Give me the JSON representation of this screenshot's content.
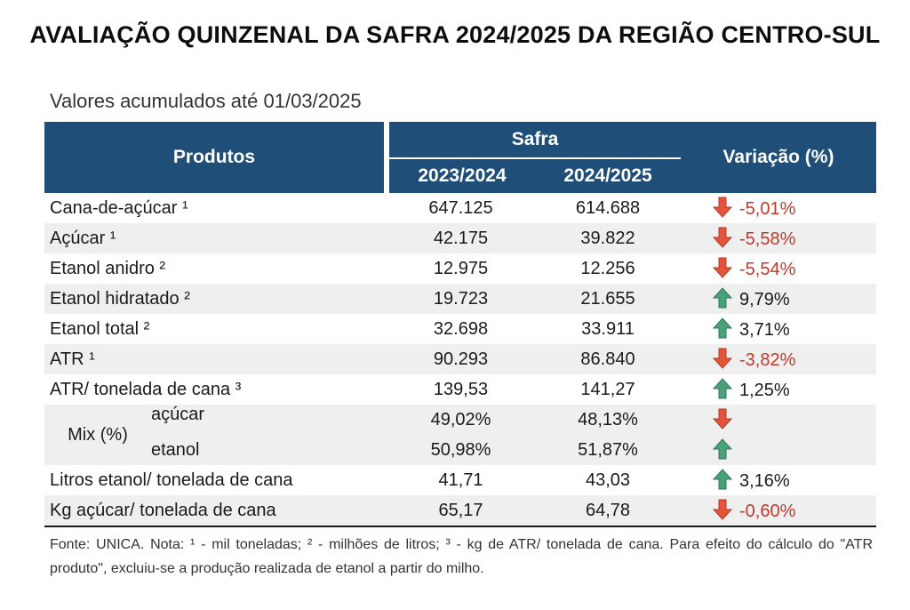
{
  "title": "AVALIAÇÃO QUINZENAL DA SAFRA 2024/2025 DA REGIÃO CENTRO-SUL",
  "subtitle": "Valores acumulados até 01/03/2025",
  "header": {
    "produtos": "Produtos",
    "safra": "Safra",
    "year1": "2023/2024",
    "year2": "2024/2025",
    "variacao": "Variação (%)"
  },
  "colors": {
    "header_bg": "#1f4e79",
    "arrow_down": "#e2553a",
    "arrow_up": "#4aa07a",
    "neg_text": "#c0392b"
  },
  "rows": [
    {
      "label": "Cana-de-açúcar ¹",
      "v1": "647.125",
      "v2": "614.688",
      "variation": "-5,01%",
      "trend": "down"
    },
    {
      "label": "Açúcar ¹",
      "v1": "42.175",
      "v2": "39.822",
      "variation": "-5,58%",
      "trend": "down"
    },
    {
      "label": "Etanol anidro ²",
      "v1": "12.975",
      "v2": "12.256",
      "variation": "-5,54%",
      "trend": "down"
    },
    {
      "label": "Etanol hidratado ²",
      "v1": "19.723",
      "v2": "21.655",
      "variation": "9,79%",
      "trend": "up"
    },
    {
      "label": "Etanol total ²",
      "v1": "32.698",
      "v2": "33.911",
      "variation": "3,71%",
      "trend": "up"
    },
    {
      "label": "ATR ¹",
      "v1": "90.293",
      "v2": "86.840",
      "variation": "-3,82%",
      "trend": "down"
    },
    {
      "label": "ATR/ tonelada de cana ³",
      "v1": "139,53",
      "v2": "141,27",
      "variation": "1,25%",
      "trend": "up"
    }
  ],
  "mix": {
    "label": "Mix (%)",
    "acucar": {
      "label": "açúcar",
      "v1": "49,02%",
      "v2": "48,13%",
      "trend": "down"
    },
    "etanol": {
      "label": "etanol",
      "v1": "50,98%",
      "v2": "51,87%",
      "trend": "up"
    }
  },
  "rows2": [
    {
      "label": "Litros etanol/ tonelada de cana",
      "v1": "41,71",
      "v2": "43,03",
      "variation": "3,16%",
      "trend": "up"
    },
    {
      "label": "Kg açúcar/ tonelada de cana",
      "v1": "65,17",
      "v2": "64,78",
      "variation": "-0,60%",
      "trend": "down"
    }
  ],
  "footnote": "Fonte: UNICA. Nota: ¹ - mil toneladas; ² - milhões de litros; ³ - kg de ATR/ tonelada de cana. Para efeito do cálculo do \"ATR produto\", excluiu-se a produção realizada de etanol a partir do milho."
}
